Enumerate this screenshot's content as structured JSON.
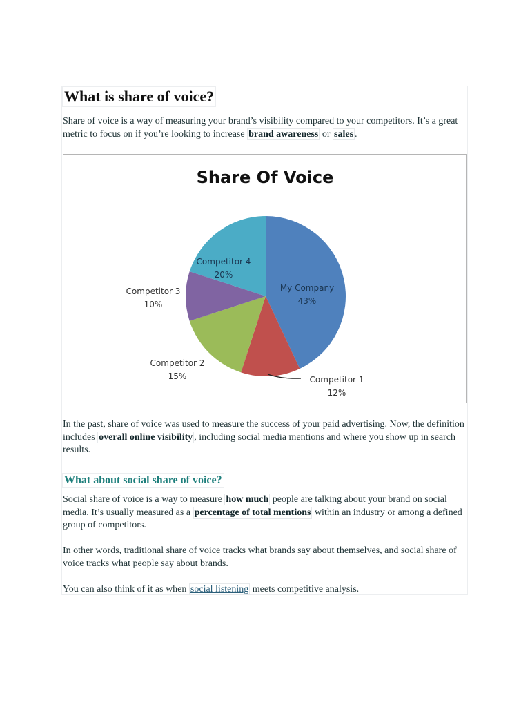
{
  "article": {
    "heading": "What is share of voice?",
    "intro": {
      "text_before": "Share of voice is a way of measuring your brand’s visibility compared to your competitors. It’s a great metric to focus on if you’re looking to increase ",
      "bold1": "brand awareness",
      "text_mid": " or ",
      "bold2": "sales",
      "text_after": "."
    },
    "para2": {
      "text_before": "In the past, share of voice was used to measure the success of your paid advertising. Now, the definition includes ",
      "bold": "overall online visibility",
      "text_after": ", including social media mentions and where you show up in search results."
    },
    "subheading": "What about social share of voice?",
    "para3": {
      "text_before": "Social share of voice is a way to measure ",
      "bold1": "how much",
      "text_mid": " people are talking about your brand on social media. It’s usually measured as a ",
      "bold2": "percentage of total mentions",
      "text_after": " within an industry or among a defined group of competitors."
    },
    "para4": "In other words, traditional share of voice tracks what brands say about themselves, and social share of voice tracks what people say about brands.",
    "para5": {
      "text_before": "You can also think of it as when ",
      "link": "social listening",
      "text_after": " meets competitive analysis."
    }
  },
  "chart_data": {
    "type": "pie",
    "title": "Share Of Voice",
    "categories": [
      "My Company",
      "Competitor 1",
      "Competitor 2",
      "Competitor 3",
      "Competitor 4"
    ],
    "values": [
      43,
      12,
      15,
      10,
      20
    ],
    "labels": [
      "43%",
      "12%",
      "15%",
      "10%",
      "20%"
    ],
    "colors": [
      "#4f81bd",
      "#c0504d",
      "#9bbb59",
      "#8064a2",
      "#4bacc6"
    ],
    "start_angle": "top (12 o'clock), clockwise",
    "legend": "none (data labels with category name and percentage)"
  }
}
